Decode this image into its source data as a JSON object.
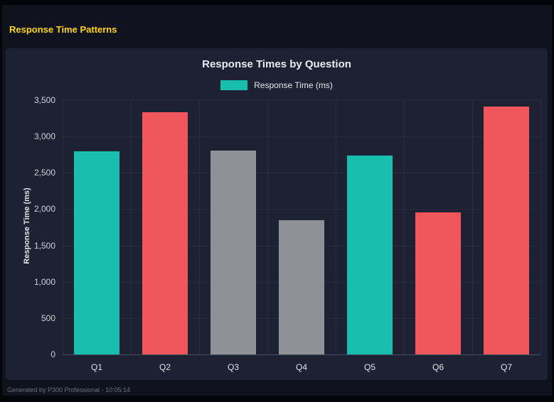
{
  "header": {
    "title": "Response Time Patterns",
    "color": "#ffd700"
  },
  "chart_data": {
    "type": "bar",
    "title": "Response Times by Question",
    "legend": {
      "label": "Response Time (ms)",
      "color": "#17bdad",
      "position": "top"
    },
    "categories": [
      "Q1",
      "Q2",
      "Q3",
      "Q4",
      "Q5",
      "Q6",
      "Q7"
    ],
    "values": [
      2800,
      3330,
      2810,
      1850,
      2740,
      1960,
      3410
    ],
    "bar_colors": [
      "#17bdad",
      "#f0565c",
      "#8f9197",
      "#8f9197",
      "#17bdad",
      "#f0565c",
      "#f0565c"
    ],
    "xlabel": "",
    "ylabel": "Response Time (ms)",
    "ylim": [
      0,
      3500
    ],
    "ytick_step": 500,
    "grid": true
  },
  "footer": {
    "text": "Generated by P300 Professional - 10:05:14"
  }
}
